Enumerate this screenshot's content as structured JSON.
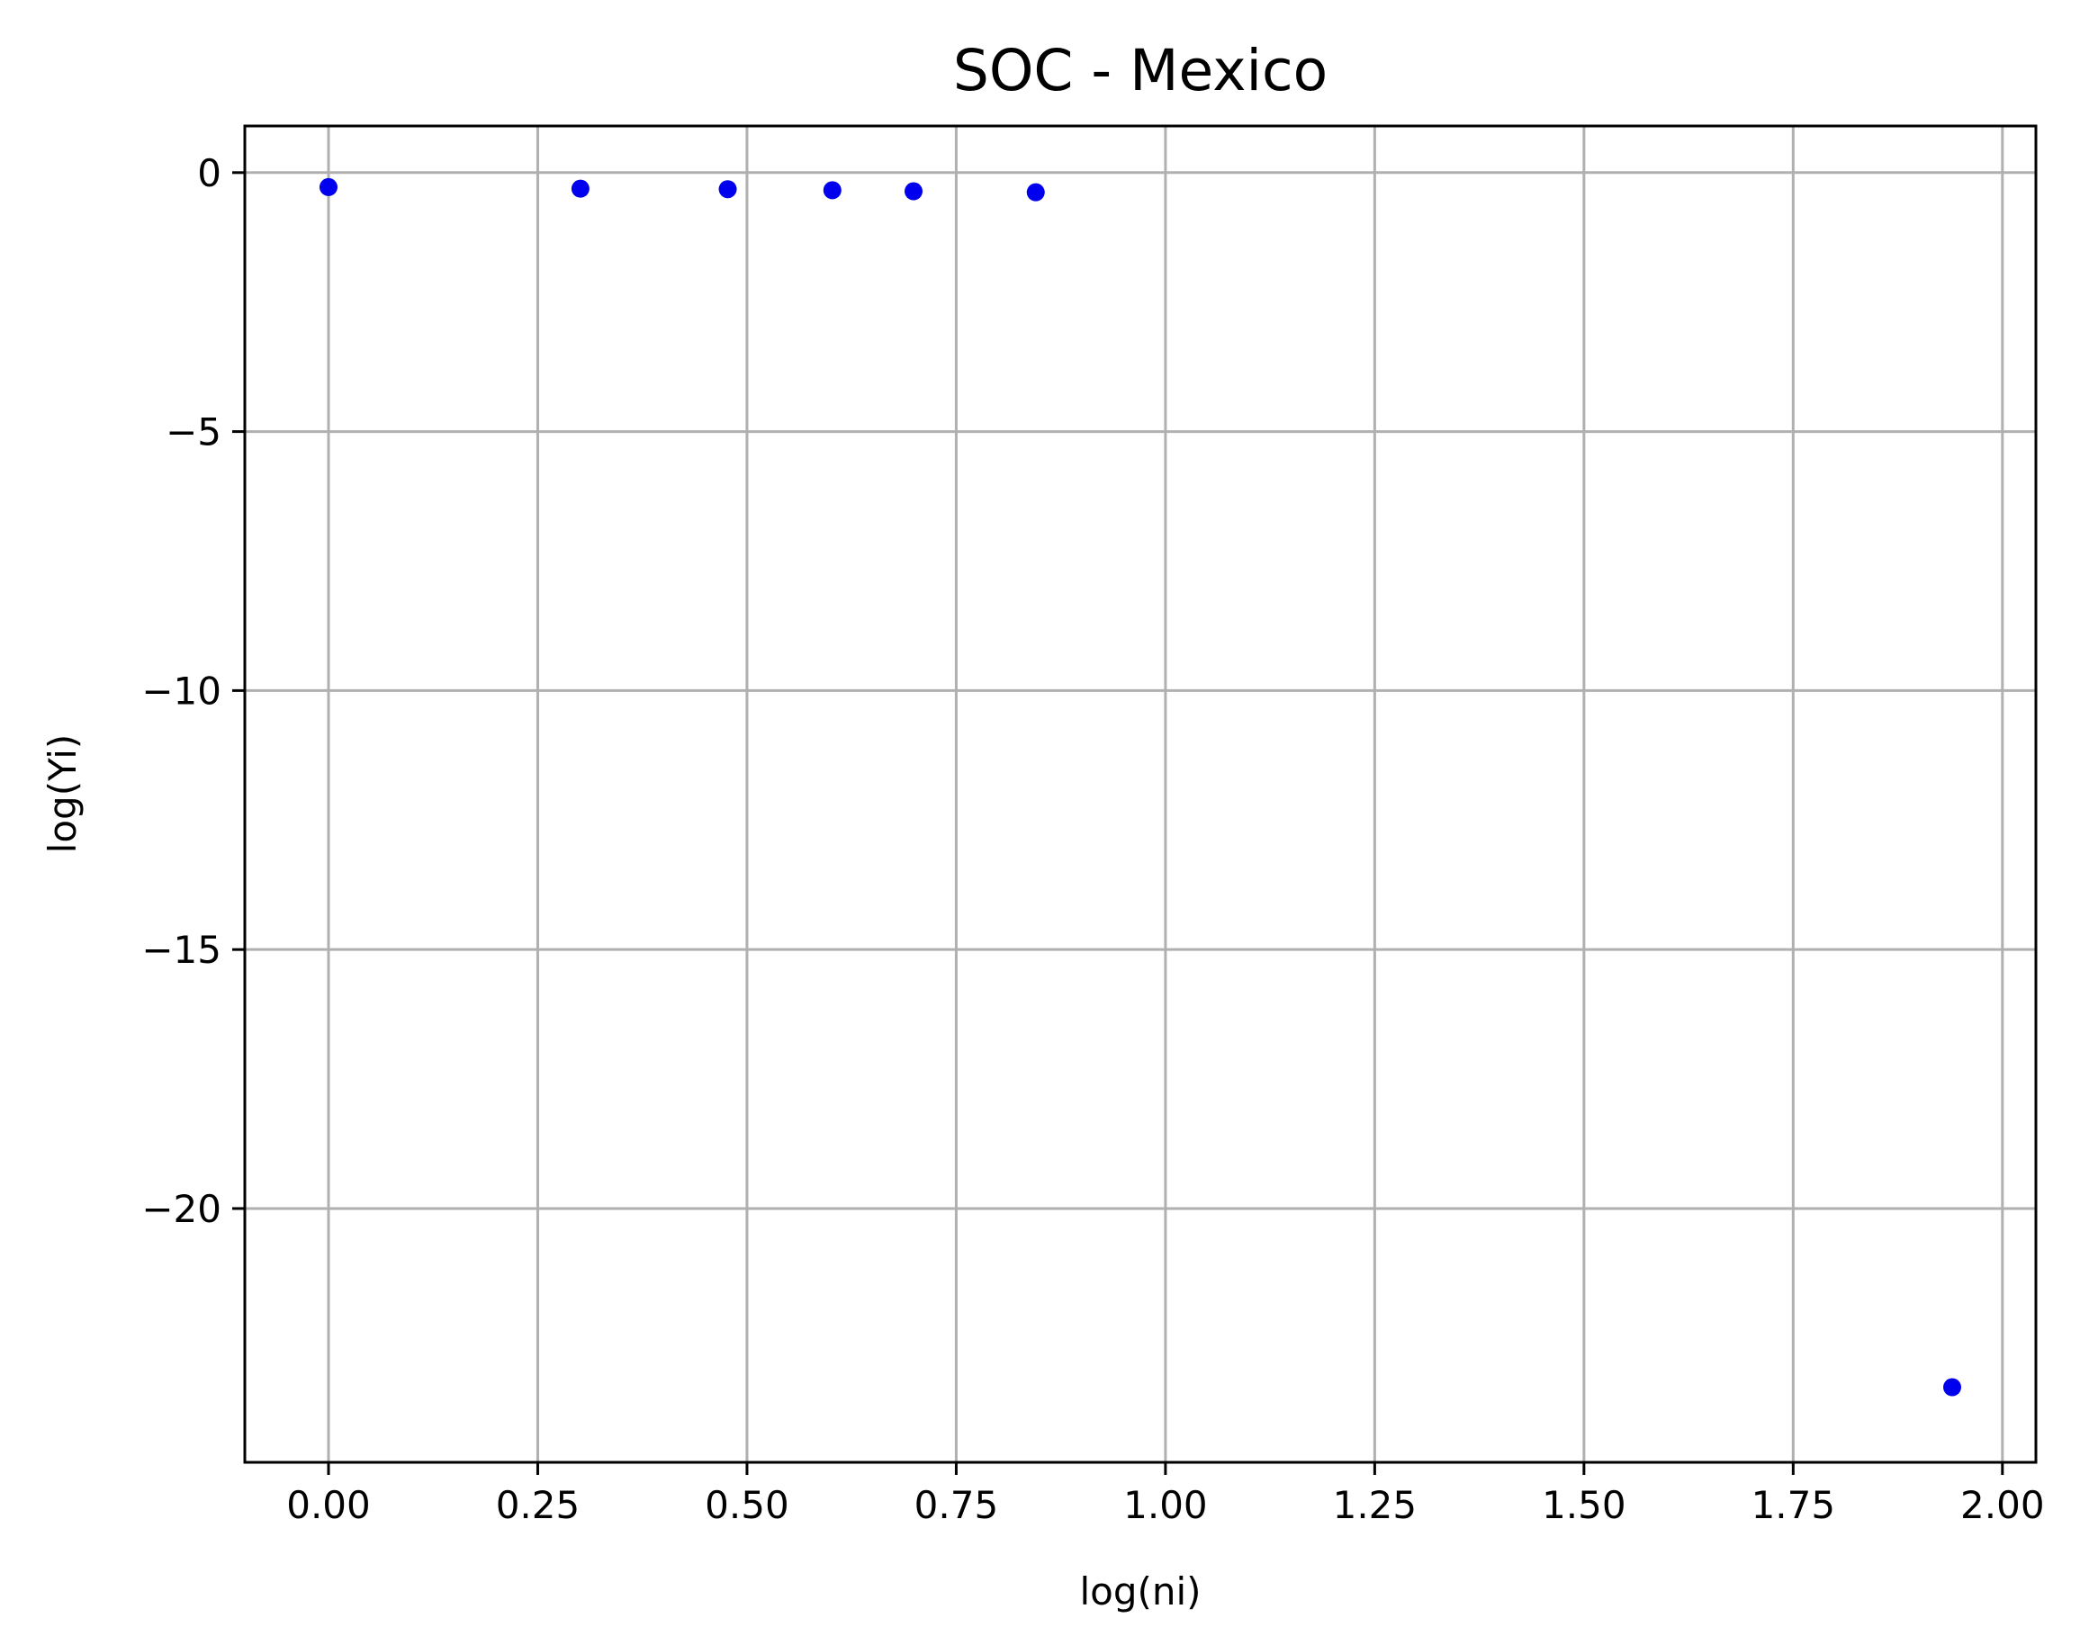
{
  "chart_data": {
    "type": "scatter",
    "title": "SOC - Mexico",
    "xlabel": "log(ni)",
    "ylabel": "log(Yi)",
    "xlim": [
      -0.1,
      2.04
    ],
    "ylim": [
      -24.9,
      0.9
    ],
    "grid": true,
    "x_ticks": [
      0.0,
      0.25,
      0.5,
      0.75,
      1.0,
      1.25,
      1.5,
      1.75,
      2.0
    ],
    "x_tick_labels": [
      "0.00",
      "0.25",
      "0.50",
      "0.75",
      "1.00",
      "1.25",
      "1.50",
      "1.75",
      "2.00"
    ],
    "y_ticks": [
      0,
      -5,
      -10,
      -15,
      -20
    ],
    "y_tick_labels": [
      "0",
      "−5",
      "−10",
      "−15",
      "−20"
    ],
    "marker_color": "#0000ee",
    "series": [
      {
        "points": [
          {
            "x": 0.0,
            "y": -0.28
          },
          {
            "x": 0.301,
            "y": -0.31
          },
          {
            "x": 0.477,
            "y": -0.32
          },
          {
            "x": 0.602,
            "y": -0.34
          },
          {
            "x": 0.699,
            "y": -0.36
          },
          {
            "x": 0.845,
            "y": -0.38
          },
          {
            "x": 1.94,
            "y": -23.45
          }
        ]
      }
    ]
  }
}
